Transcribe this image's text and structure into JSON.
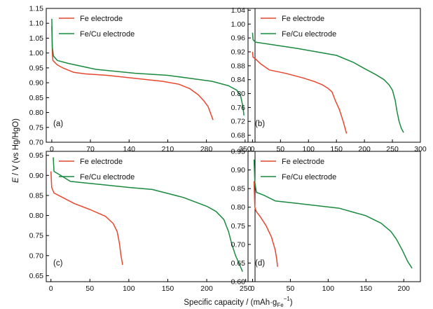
{
  "figure": {
    "ylabel_main": "E",
    "ylabel_rest": " / V (vs Hg/HgO)",
    "xlabel_main": "Specific capacity / (mAh·g",
    "xlabel_sub": "Fe",
    "xlabel_sup": "−1",
    "xlabel_end": ")"
  },
  "colors": {
    "fe": "#e8462e",
    "fecu": "#1a8a3e",
    "axis": "#000000"
  },
  "chart_data": [
    {
      "type": "line",
      "label": "(a)",
      "x_ticks": [
        0,
        70,
        140,
        210,
        280,
        350
      ],
      "y_ticks": [
        0.7,
        0.75,
        0.8,
        0.85,
        0.9,
        0.95,
        1.0,
        1.05,
        1.1,
        1.15
      ],
      "y_tick_labels": [
        "0.70",
        "0.75",
        "0.80",
        "0.85",
        "0.90",
        "0.95",
        "1.00",
        "1.05",
        "1.10",
        "1.15"
      ],
      "xlim": [
        -10,
        368
      ],
      "ylim": [
        0.7,
        1.15
      ],
      "legend": "top-left",
      "series": [
        {
          "name": "Fe electrode",
          "color": "#e8462e",
          "points": [
            [
              0,
              1.09
            ],
            [
              1,
              1.0
            ],
            [
              2,
              0.975
            ],
            [
              10,
              0.96
            ],
            [
              20,
              0.95
            ],
            [
              40,
              0.935
            ],
            [
              60,
              0.93
            ],
            [
              100,
              0.925
            ],
            [
              150,
              0.915
            ],
            [
              200,
              0.905
            ],
            [
              230,
              0.895
            ],
            [
              250,
              0.88
            ],
            [
              265,
              0.86
            ],
            [
              275,
              0.84
            ],
            [
              283,
              0.82
            ],
            [
              288,
              0.795
            ],
            [
              292,
              0.775
            ]
          ]
        },
        {
          "name": "Fe/Cu electrode",
          "color": "#1a8a3e",
          "points": [
            [
              0,
              1.115
            ],
            [
              1,
              1.02
            ],
            [
              3,
              0.99
            ],
            [
              10,
              0.975
            ],
            [
              30,
              0.965
            ],
            [
              80,
              0.945
            ],
            [
              150,
              0.932
            ],
            [
              210,
              0.925
            ],
            [
              250,
              0.915
            ],
            [
              290,
              0.905
            ],
            [
              320,
              0.89
            ],
            [
              335,
              0.875
            ],
            [
              342,
              0.855
            ],
            [
              346,
              0.82
            ],
            [
              348,
              0.79
            ]
          ]
        }
      ]
    },
    {
      "type": "line",
      "label": "(b)",
      "x_ticks": [
        0,
        50,
        100,
        150,
        200,
        250,
        300
      ],
      "y_ticks": [
        0.68,
        0.72,
        0.76,
        0.8,
        0.84,
        0.88,
        0.92,
        0.96,
        1.0,
        1.04
      ],
      "y_tick_labels": [
        "0.68",
        "0.72",
        "0.76",
        "0.80",
        "0.84",
        "0.88",
        "0.92",
        "0.96",
        "1.00",
        "1.04"
      ],
      "xlim": [
        -8,
        300
      ],
      "ylim": [
        0.66,
        1.045
      ],
      "legend": "top-left",
      "series": [
        {
          "name": "Fe electrode",
          "color": "#e8462e",
          "points": [
            [
              0,
              0.92
            ],
            [
              1,
              0.905
            ],
            [
              5,
              0.9
            ],
            [
              15,
              0.885
            ],
            [
              30,
              0.868
            ],
            [
              60,
              0.858
            ],
            [
              90,
              0.845
            ],
            [
              110,
              0.835
            ],
            [
              125,
              0.825
            ],
            [
              135,
              0.815
            ],
            [
              142,
              0.805
            ],
            [
              148,
              0.78
            ],
            [
              155,
              0.755
            ],
            [
              162,
              0.72
            ],
            [
              168,
              0.685
            ]
          ]
        },
        {
          "name": "Fe/Cu electrode",
          "color": "#1a8a3e",
          "points": [
            [
              0,
              0.975
            ],
            [
              1,
              0.955
            ],
            [
              5,
              0.948
            ],
            [
              30,
              0.942
            ],
            [
              80,
              0.93
            ],
            [
              150,
              0.91
            ],
            [
              180,
              0.89
            ],
            [
              200,
              0.872
            ],
            [
              220,
              0.855
            ],
            [
              235,
              0.84
            ],
            [
              244,
              0.825
            ],
            [
              250,
              0.81
            ],
            [
              255,
              0.78
            ],
            [
              258,
              0.75
            ],
            [
              262,
              0.72
            ],
            [
              266,
              0.7
            ],
            [
              270,
              0.688
            ]
          ]
        }
      ]
    },
    {
      "type": "line",
      "label": "(c)",
      "x_ticks": [
        0,
        50,
        100,
        150,
        200,
        250
      ],
      "y_ticks": [
        0.65,
        0.7,
        0.75,
        0.8,
        0.85,
        0.9,
        0.95
      ],
      "y_tick_labels": [
        "0.65",
        "0.70",
        "0.75",
        "0.80",
        "0.85",
        "0.90",
        "0.95"
      ],
      "xlim": [
        -6,
        262
      ],
      "ylim": [
        0.635,
        0.96
      ],
      "legend": "top-left",
      "series": [
        {
          "name": "Fe electrode",
          "color": "#e8462e",
          "points": [
            [
              0,
              0.91
            ],
            [
              1,
              0.87
            ],
            [
              4,
              0.856
            ],
            [
              15,
              0.845
            ],
            [
              30,
              0.83
            ],
            [
              50,
              0.815
            ],
            [
              70,
              0.798
            ],
            [
              80,
              0.78
            ],
            [
              85,
              0.76
            ],
            [
              88,
              0.73
            ],
            [
              90,
              0.7
            ],
            [
              92,
              0.677
            ]
          ]
        },
        {
          "name": "Fe/Cu electrode",
          "color": "#1a8a3e",
          "points": [
            [
              3,
              0.945
            ],
            [
              4,
              0.91
            ],
            [
              10,
              0.903
            ],
            [
              25,
              0.885
            ],
            [
              60,
              0.878
            ],
            [
              100,
              0.87
            ],
            [
              130,
              0.865
            ],
            [
              170,
              0.845
            ],
            [
              200,
              0.823
            ],
            [
              212,
              0.81
            ],
            [
              222,
              0.79
            ],
            [
              228,
              0.76
            ],
            [
              232,
              0.73
            ],
            [
              237,
              0.7
            ],
            [
              242,
              0.678
            ],
            [
              246,
              0.66
            ]
          ]
        }
      ]
    },
    {
      "type": "line",
      "label": "(d)",
      "x_ticks": [
        0,
        50,
        100,
        150,
        200
      ],
      "y_ticks": [
        0.6,
        0.65,
        0.7,
        0.75,
        0.8,
        0.85,
        0.9,
        0.95
      ],
      "y_tick_labels": [
        "0.60",
        "0.65",
        "0.70",
        "0.75",
        "0.80",
        "0.85",
        "0.90",
        "0.95"
      ],
      "xlim": [
        -6,
        222
      ],
      "ylim": [
        0.6,
        0.95
      ],
      "legend": "top-left",
      "series": [
        {
          "name": "Fe electrode",
          "color": "#e8462e",
          "points": [
            [
              2,
              0.87
            ],
            [
              3,
              0.8
            ],
            [
              5,
              0.788
            ],
            [
              10,
              0.775
            ],
            [
              18,
              0.75
            ],
            [
              25,
              0.72
            ],
            [
              30,
              0.685
            ],
            [
              32,
              0.66
            ],
            [
              33,
              0.64
            ]
          ]
        },
        {
          "name": "Fe/Cu electrode",
          "color": "#1a8a3e",
          "points": [
            [
              2,
              0.928
            ],
            [
              3,
              0.868
            ],
            [
              5,
              0.84
            ],
            [
              15,
              0.832
            ],
            [
              30,
              0.817
            ],
            [
              60,
              0.81
            ],
            [
              115,
              0.797
            ],
            [
              150,
              0.777
            ],
            [
              170,
              0.757
            ],
            [
              183,
              0.735
            ],
            [
              190,
              0.715
            ],
            [
              198,
              0.685
            ],
            [
              205,
              0.655
            ],
            [
              211,
              0.636
            ]
          ]
        }
      ]
    }
  ]
}
